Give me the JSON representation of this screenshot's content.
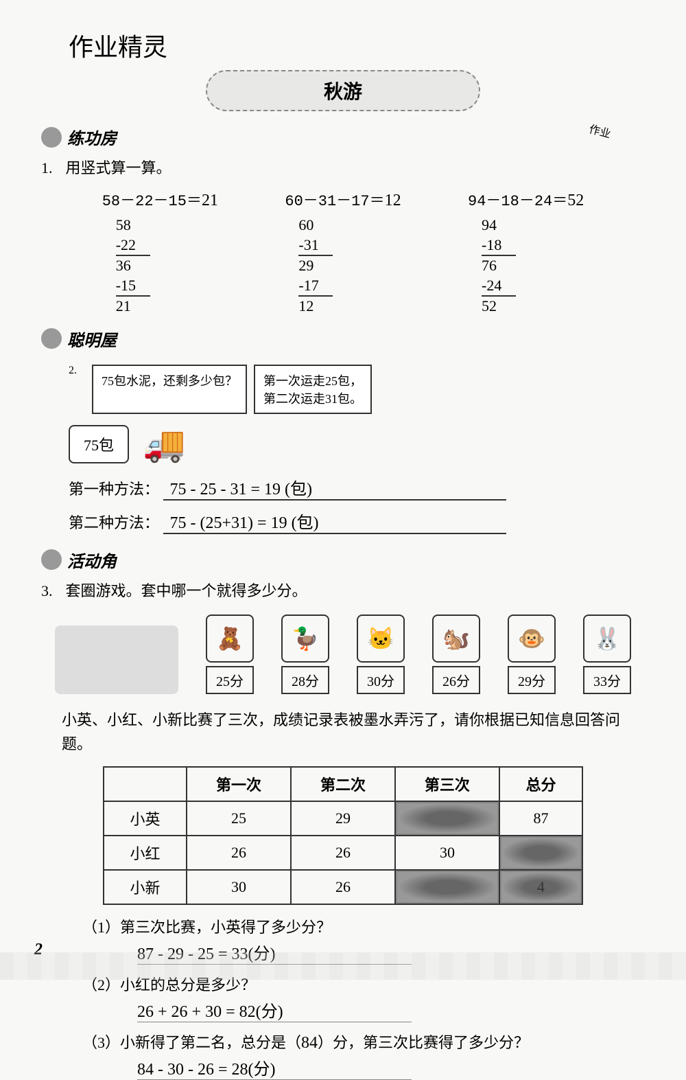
{
  "header_script": "作业精灵",
  "section_title": "秋游",
  "stamp_text": "作业",
  "sections": {
    "practice": "练功房",
    "smart": "聪明屋",
    "activity": "活动角"
  },
  "p1": {
    "num": "1.",
    "text": "用竖式算一算。",
    "calcs": [
      {
        "eq": "58－22－15＝",
        "ans": "21",
        "vert": [
          "58",
          "-22",
          "36",
          "-15",
          "21"
        ]
      },
      {
        "eq": "60－31－17＝",
        "ans": "12",
        "vert": [
          "60",
          "-31",
          "29",
          "-17",
          "12"
        ]
      },
      {
        "eq": "94－18－24＝",
        "ans": "52",
        "vert": [
          "94",
          "-18",
          "76",
          "-24",
          "52"
        ]
      }
    ]
  },
  "p2": {
    "num": "2.",
    "speech1": "75包水泥，还剩多少包？",
    "speech2": "第一次运走25包，\n第二次运走31包。",
    "pile": "75包",
    "method1_label": "第一种方法：",
    "method1_ans": "75 - 25 - 31 = 19 (包)",
    "method2_label": "第二种方法：",
    "method2_ans": "75 - (25+31) = 19 (包)"
  },
  "p3": {
    "num": "3.",
    "text": "套圈游戏。套中哪一个就得多少分。",
    "items": [
      {
        "icon": "🧸",
        "score": "25分"
      },
      {
        "icon": "🦆",
        "score": "28分"
      },
      {
        "icon": "🐱",
        "score": "30分"
      },
      {
        "icon": "🐿️",
        "score": "26分"
      },
      {
        "icon": "🐵",
        "score": "29分"
      },
      {
        "icon": "🐰",
        "score": "33分"
      }
    ],
    "para": "小英、小红、小新比赛了三次，成绩记录表被墨水弄污了，请你根据已知信息回答问题。",
    "table": {
      "headers": [
        "",
        "第一次",
        "第二次",
        "第三次",
        "总分"
      ],
      "rows": [
        [
          "小英",
          "25",
          "29",
          "",
          "87"
        ],
        [
          "小红",
          "26",
          "26",
          "30",
          ""
        ],
        [
          "小新",
          "30",
          "26",
          "",
          "4"
        ]
      ],
      "smudged": [
        [
          0,
          3
        ],
        [
          1,
          4
        ],
        [
          2,
          3
        ],
        [
          2,
          4
        ]
      ]
    },
    "subq": [
      {
        "q": "（1）第三次比赛，小英得了多少分？",
        "a": "87 - 29 - 25 = 33(分)"
      },
      {
        "q": "（2）小红的总分是多少？",
        "a": "26 + 26 + 30 = 82(分)"
      },
      {
        "q": "（3）小新得了第二名，总分是（",
        "blank": "84",
        "q2": "）分，第三次比赛得了多少分？",
        "a": "84 - 30 - 26 = 28(分)"
      }
    ]
  },
  "page_num": "2"
}
